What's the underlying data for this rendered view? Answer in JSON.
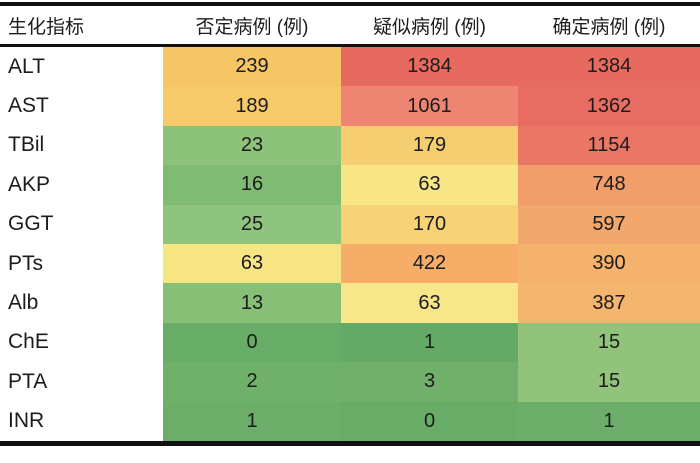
{
  "chart_data": {
    "type": "heatmap",
    "title": "",
    "categories": [
      "ALT",
      "AST",
      "TBil",
      "AKP",
      "GGT",
      "PTs",
      "Alb",
      "ChE",
      "PTA",
      "INR"
    ],
    "series": [
      {
        "name": "否定病例 (例)",
        "values": [
          239,
          189,
          23,
          16,
          25,
          63,
          13,
          0,
          2,
          1
        ]
      },
      {
        "name": "疑似病例 (例)",
        "values": [
          1384,
          1061,
          179,
          63,
          170,
          422,
          63,
          1,
          3,
          0
        ]
      },
      {
        "name": "确定病例 (例)",
        "values": [
          1384,
          1362,
          1154,
          748,
          597,
          390,
          387,
          15,
          15,
          1
        ]
      }
    ],
    "value_range": [
      0,
      1384
    ],
    "colorscale": "red-yellow-green, high values red (#e66a5f), mid amber/yellow (#f7e586), low dark green (#68ad67)",
    "legend": "none",
    "grid": "none"
  },
  "table": {
    "columns": [
      "生化指标",
      "否定病例 (例)",
      "疑似病例 (例)",
      "确定病例 (例)"
    ],
    "rows": [
      {
        "label": "ALT",
        "values": [
          "239",
          "1384",
          "1384"
        ],
        "colors": [
          "#f5c566",
          "#e66a5f",
          "#e66a5f"
        ]
      },
      {
        "label": "AST",
        "values": [
          "189",
          "1061",
          "1362"
        ],
        "colors": [
          "#f6c96b",
          "#ee8572",
          "#e76c61"
        ]
      },
      {
        "label": "TBil",
        "values": [
          "23",
          "179",
          "1154"
        ],
        "colors": [
          "#8dc27b",
          "#f6ce72",
          "#ea7666"
        ]
      },
      {
        "label": "AKP",
        "values": [
          "16",
          "63",
          "748"
        ],
        "colors": [
          "#80bb73",
          "#f7e586",
          "#f19e6b"
        ]
      },
      {
        "label": "GGT",
        "values": [
          "25",
          "170",
          "597"
        ],
        "colors": [
          "#8ec47d",
          "#f7d277",
          "#f2a86d"
        ]
      },
      {
        "label": "PTs",
        "values": [
          "63",
          "422",
          "390"
        ],
        "colors": [
          "#f7e584",
          "#f5ad68",
          "#f4b26c"
        ]
      },
      {
        "label": "Alb",
        "values": [
          "13",
          "63",
          "387"
        ],
        "colors": [
          "#87bf77",
          "#f7e78a",
          "#f4b56f"
        ]
      },
      {
        "label": "ChE",
        "values": [
          "0",
          "1",
          "15"
        ],
        "colors": [
          "#68ad67",
          "#64aa66",
          "#92c37b"
        ]
      },
      {
        "label": "PTA",
        "values": [
          "2",
          "3",
          "15"
        ],
        "colors": [
          "#6fb06b",
          "#70b06b",
          "#92c37b"
        ]
      },
      {
        "label": "INR",
        "values": [
          "1",
          "0",
          "1"
        ],
        "colors": [
          "#6cae69",
          "#68ac67",
          "#6cae69"
        ]
      }
    ],
    "style": {
      "border_color": "#101010",
      "text_color": "#1c1c1c",
      "background": "#ffffff"
    }
  }
}
